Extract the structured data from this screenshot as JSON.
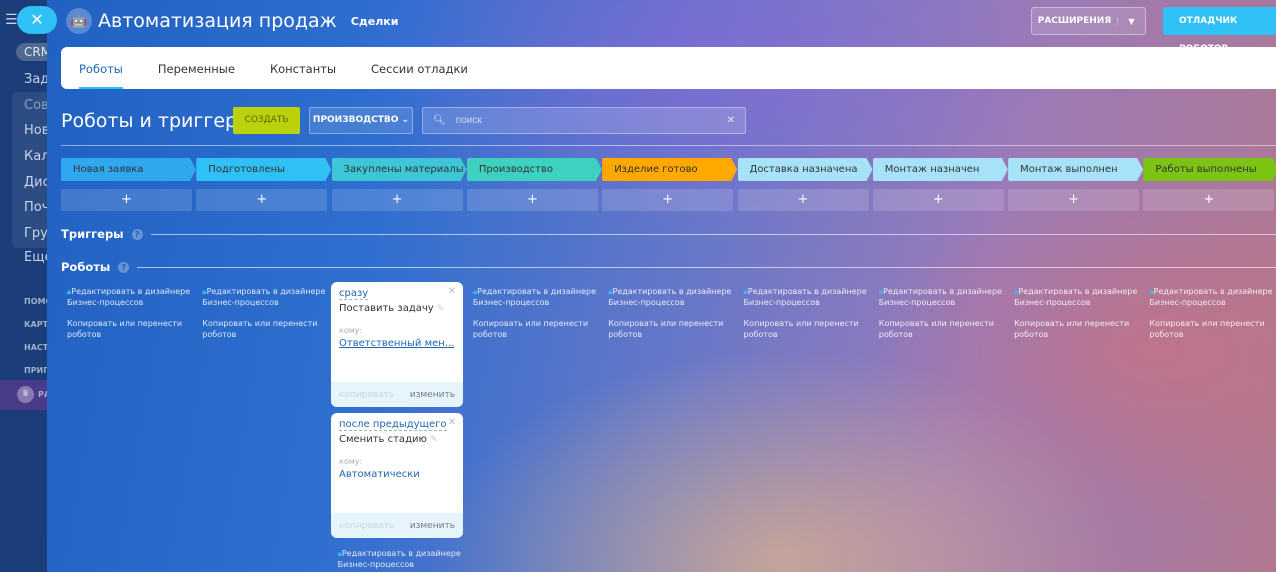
{
  "sidebar": {
    "items": [
      "CRM",
      "Задачи",
      "Совместная работа",
      "Новости",
      "Календарь",
      "Диск",
      "Почта",
      "Группы",
      "Ещё"
    ],
    "small": [
      "ПОМОЩЬ",
      "КАРТА",
      "НАСТРОЙКИ",
      "ПРИГЛАСИТЬ",
      "РАСШИРИТЬ"
    ]
  },
  "header": {
    "title": "Автоматизация продаж",
    "subtitle": "Сделки",
    "extensions_label": "РАСШИРЕНИЯ",
    "debugger_label": "ОТЛАДЧИК РОБОТОВ"
  },
  "tabs": [
    {
      "label": "Роботы",
      "active": true
    },
    {
      "label": "Переменные"
    },
    {
      "label": "Константы"
    },
    {
      "label": "Сессии отладки"
    }
  ],
  "toolbar": {
    "heading": "Роботы и триггеры",
    "create_label": "СОЗДАТЬ",
    "pipeline_label": "ПРОИЗВОДСТВО",
    "search_placeholder": "поиск"
  },
  "stages": [
    {
      "label": "Новая заявка",
      "color": "#2fa8f0"
    },
    {
      "label": "Подготовлены чертежи",
      "color": "#2fc0f5"
    },
    {
      "label": "Закуплены материалы",
      "color": "#3cc6d6"
    },
    {
      "label": "Производство запуще...",
      "color": "#3dd2c0"
    },
    {
      "label": "Изделие готово",
      "color": "#ffa900"
    },
    {
      "label": "Доставка назначена",
      "color": "#a8e2f8"
    },
    {
      "label": "Монтаж назначен",
      "color": "#a8e2f8"
    },
    {
      "label": "Монтаж выполнен",
      "color": "#a8e2f8"
    },
    {
      "label": "Работы выполнены",
      "color": "#7bc414"
    }
  ],
  "sections": {
    "triggers": "Триггеры",
    "robots": "Роботы"
  },
  "column_links": {
    "edit": "Редактировать в дизайнере Бизнес-процессов",
    "copy": "Копировать или перенести роботов"
  },
  "robots": [
    {
      "when": "сразу",
      "name": "Поставить задачу",
      "to_label": "кому:",
      "to": "Ответственный мен...",
      "copy": "копировать",
      "edit": "изменить"
    },
    {
      "when": "после предыдущего",
      "name": "Сменить стадию",
      "to_label": "кому:",
      "to": "Автоматически",
      "copy": "копировать",
      "edit": "изменить"
    }
  ]
}
